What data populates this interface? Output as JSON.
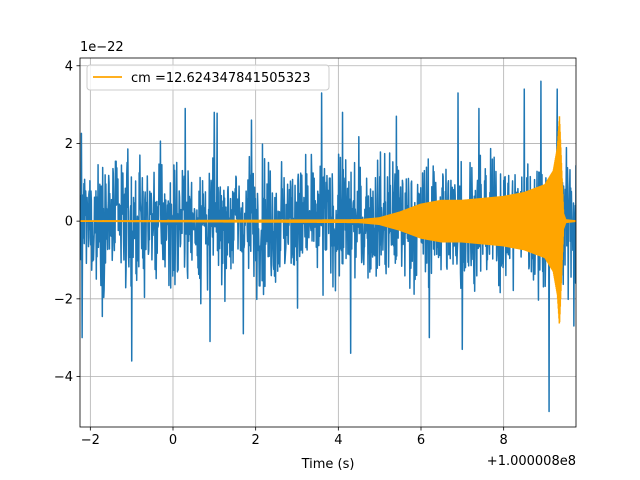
{
  "chart_data": {
    "type": "line",
    "title": "",
    "xlabel": "Time (s)",
    "ylabel": "",
    "x_offset_label": "+1.000008e8",
    "y_scale_label": "1e−22",
    "xlim": [
      -2.25,
      9.75
    ],
    "ylim": [
      -5.3,
      4.2
    ],
    "x_ticks": [
      -2,
      0,
      2,
      4,
      6,
      8
    ],
    "x_tick_labels": [
      "−2",
      "0",
      "2",
      "4",
      "6",
      "8"
    ],
    "y_ticks": [
      -4,
      -2,
      0,
      2,
      4
    ],
    "y_tick_labels": [
      "−4",
      "−2",
      "0",
      "2",
      "4"
    ],
    "grid": true,
    "legend_position": "upper left",
    "series": [
      {
        "color": "#1f77b4",
        "kind": "noise",
        "x_range": [
          -2.25,
          9.75
        ],
        "typical_amplitude": 1.8,
        "peaks_top": [
          [
            -2.2,
            3.1
          ],
          [
            -1.0,
            2.6
          ],
          [
            0.3,
            2.9
          ],
          [
            1.0,
            2.8
          ],
          [
            1.9,
            2.6
          ],
          [
            3.6,
            3.3
          ],
          [
            4.1,
            2.8
          ],
          [
            5.4,
            2.7
          ],
          [
            6.9,
            3.3
          ],
          [
            7.4,
            2.9
          ],
          [
            8.5,
            3.4
          ],
          [
            8.9,
            3.6
          ],
          [
            9.3,
            3.4
          ]
        ],
        "peaks_bottom": [
          [
            -2.2,
            -3.0
          ],
          [
            -1.0,
            -3.6
          ],
          [
            0.9,
            -3.1
          ],
          [
            1.7,
            -2.9
          ],
          [
            4.3,
            -3.4
          ],
          [
            6.2,
            -3.0
          ],
          [
            7.0,
            -3.3
          ],
          [
            9.1,
            -4.9
          ],
          [
            9.7,
            -2.7
          ]
        ]
      },
      {
        "name": "cm =12.624347841505323",
        "color": "#ffa500",
        "kind": "chirp",
        "x": [
          -2.25,
          4.5,
          5.0,
          5.5,
          6.0,
          6.5,
          7.0,
          7.5,
          8.0,
          8.5,
          9.0,
          9.2,
          9.3,
          9.35,
          9.45,
          9.5,
          9.75
        ],
        "envelope": [
          0.02,
          0.05,
          0.1,
          0.25,
          0.45,
          0.55,
          0.55,
          0.6,
          0.65,
          0.75,
          0.95,
          1.3,
          1.9,
          2.7,
          0.2,
          0.05,
          0.02
        ]
      }
    ]
  }
}
